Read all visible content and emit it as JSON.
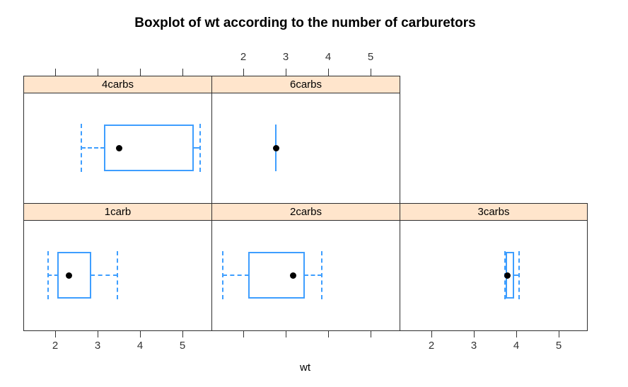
{
  "title": "Boxplot of wt according to the number of carburetors",
  "colors": {
    "box_stroke": "#3E9EFF",
    "median_dot": "#000000",
    "strip_bg": "#FFE5CC",
    "panel_border": "#2E2E2E",
    "tick_mark": "#333333",
    "tick_label_text": "#333333",
    "title_text": "#000000",
    "background": "#FFFFFF"
  },
  "chart_data": {
    "type": "boxplot",
    "style": "lattice-conditioned-panels",
    "orientation": "horizontal",
    "title": "Boxplot of wt according to the number of carburetors",
    "xlabel": "wt",
    "group_variable": "number of carburetors",
    "x_ticks": [
      "2",
      "3",
      "4",
      "5"
    ],
    "x_tick_values": [
      2,
      3,
      4,
      5
    ],
    "x_range": [
      1.25,
      5.7
    ],
    "grid": false,
    "panels": [
      {
        "label": "4carbs",
        "row": 0,
        "col": 0,
        "stats": {
          "whisker_low": 2.62,
          "q1": 3.17,
          "median": 3.5,
          "q3": 5.25,
          "whisker_high": 5.42
        }
      },
      {
        "label": "6carbs",
        "row": 0,
        "col": 1,
        "stats": {
          "whisker_low": 2.77,
          "q1": 2.77,
          "median": 2.77,
          "q3": 2.77,
          "whisker_high": 2.77
        }
      },
      {
        "label": "1carb",
        "row": 1,
        "col": 0,
        "stats": {
          "whisker_low": 1.84,
          "q1": 2.07,
          "median": 2.32,
          "q3": 2.84,
          "whisker_high": 3.46
        }
      },
      {
        "label": "2carbs",
        "row": 1,
        "col": 1,
        "stats": {
          "whisker_low": 1.51,
          "q1": 2.14,
          "median": 3.17,
          "q3": 3.44,
          "whisker_high": 3.85
        }
      },
      {
        "label": "3carbs",
        "row": 1,
        "col": 2,
        "stats": {
          "whisker_low": 3.73,
          "q1": 3.76,
          "median": 3.78,
          "q3": 3.93,
          "whisker_high": 4.07
        }
      }
    ],
    "axes": {
      "top": [
        {
          "col": 0,
          "labeled": false
        },
        {
          "col": 1,
          "labeled": true
        }
      ],
      "bottom": [
        {
          "col": 0,
          "labeled": true
        },
        {
          "col": 1,
          "labeled": false
        },
        {
          "col": 2,
          "labeled": true
        }
      ]
    }
  }
}
